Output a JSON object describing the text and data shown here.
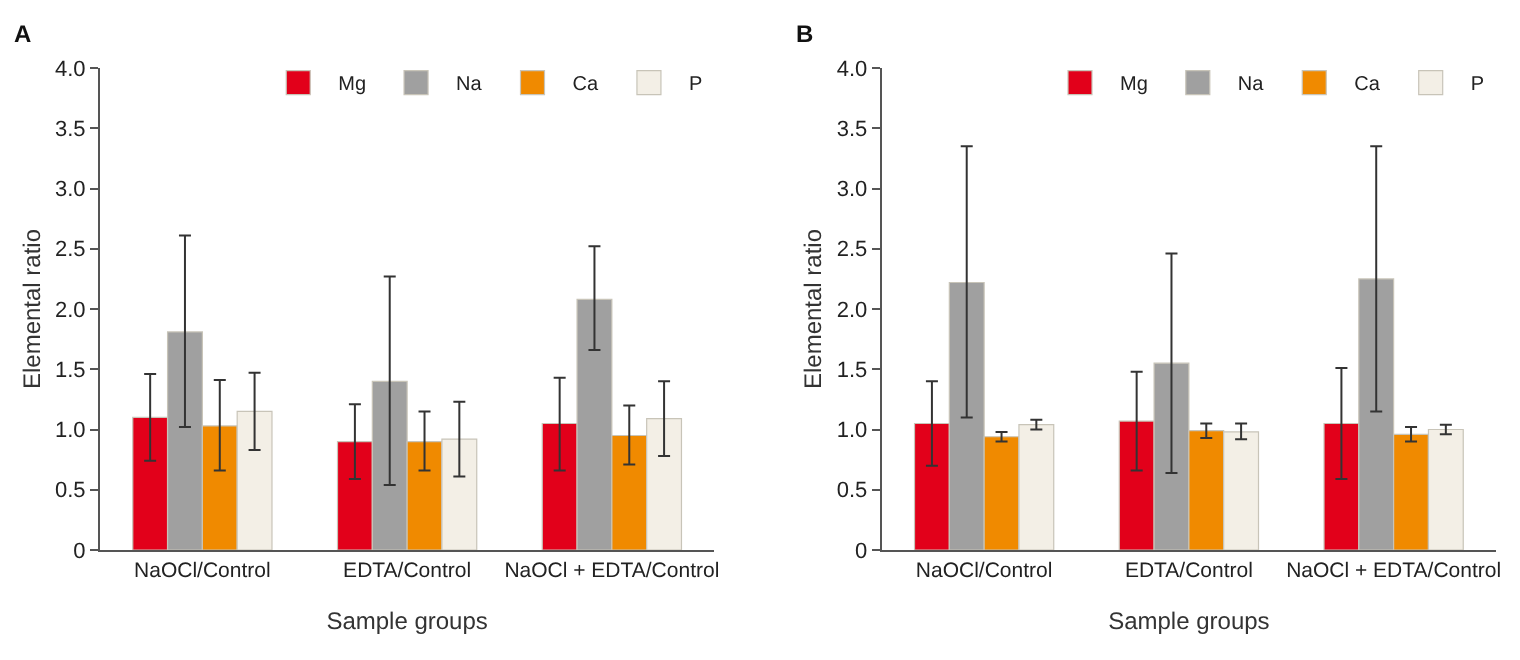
{
  "chart_data": [
    {
      "type": "bar",
      "title": "A",
      "xlabel": "Sample groups",
      "ylabel": "Elemental ratio",
      "categories": [
        "NaOCl/Control",
        "EDTA/Control",
        "NaOCl + EDTA/Control"
      ],
      "ylim": [
        0,
        4
      ],
      "yticks": [
        0,
        0.5,
        {
          "value": 1,
          "label": "1.0"
        },
        1.5,
        {
          "value": 2,
          "label": "2.0"
        },
        2.5,
        {
          "value": 3,
          "label": "3.0"
        },
        3.5,
        {
          "value": 4,
          "label": "4.0"
        }
      ],
      "legend": "top right",
      "series": [
        {
          "name": "Mg",
          "color": "#e2001a",
          "values": [
            1.1,
            0.9,
            1.05
          ],
          "errors": [
            [
              0.74,
              1.46
            ],
            [
              0.59,
              1.21
            ],
            [
              0.66,
              1.43
            ]
          ]
        },
        {
          "name": "Na",
          "color": "#a0a0a0",
          "values": [
            1.81,
            1.4,
            2.08
          ],
          "errors": [
            [
              1.02,
              2.61
            ],
            [
              0.54,
              2.27
            ],
            [
              1.66,
              2.52
            ]
          ]
        },
        {
          "name": "Ca",
          "color": "#f08a00",
          "values": [
            1.03,
            0.9,
            0.95
          ],
          "errors": [
            [
              0.66,
              1.41
            ],
            [
              0.66,
              1.15
            ],
            [
              0.71,
              1.2
            ]
          ]
        },
        {
          "name": "P",
          "color": "#f3efe6",
          "values": [
            1.15,
            0.92,
            1.09
          ],
          "errors": [
            [
              0.83,
              1.47
            ],
            [
              0.61,
              1.23
            ],
            [
              0.78,
              1.4
            ]
          ]
        }
      ]
    },
    {
      "type": "bar",
      "title": "B",
      "xlabel": "Sample groups",
      "ylabel": "Elemental ratio",
      "categories": [
        "NaOCl/Control",
        "EDTA/Control",
        "NaOCl + EDTA/Control"
      ],
      "ylim": [
        0,
        4
      ],
      "yticks": [
        0,
        0.5,
        {
          "value": 1,
          "label": "1.0"
        },
        1.5,
        {
          "value": 2,
          "label": "2.0"
        },
        2.5,
        {
          "value": 3,
          "label": "3.0"
        },
        3.5,
        {
          "value": 4,
          "label": "4.0"
        }
      ],
      "legend": "top right",
      "series": [
        {
          "name": "Mg",
          "color": "#e2001a",
          "values": [
            1.05,
            1.07,
            1.05
          ],
          "errors": [
            [
              0.7,
              1.4
            ],
            [
              0.66,
              1.48
            ],
            [
              0.59,
              1.51
            ]
          ]
        },
        {
          "name": "Na",
          "color": "#a0a0a0",
          "values": [
            2.22,
            1.55,
            2.25
          ],
          "errors": [
            [
              1.1,
              3.35
            ],
            [
              0.64,
              2.46
            ],
            [
              1.15,
              3.35
            ]
          ]
        },
        {
          "name": "Ca",
          "color": "#f08a00",
          "values": [
            0.94,
            0.99,
            0.96
          ],
          "errors": [
            [
              0.9,
              0.98
            ],
            [
              0.93,
              1.05
            ],
            [
              0.9,
              1.02
            ]
          ]
        },
        {
          "name": "P",
          "color": "#f3efe6",
          "values": [
            1.04,
            0.98,
            1.0
          ],
          "errors": [
            [
              1.0,
              1.08
            ],
            [
              0.92,
              1.05
            ],
            [
              0.96,
              1.04
            ]
          ]
        }
      ]
    }
  ]
}
